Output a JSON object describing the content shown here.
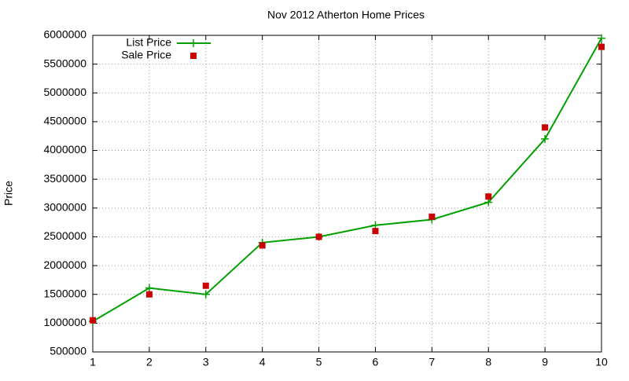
{
  "chart_data": {
    "type": "line",
    "title": "Nov 2012 Atherton Home Prices",
    "y_label": "Price",
    "x": [
      1,
      2,
      3,
      4,
      5,
      6,
      7,
      8,
      9,
      10
    ],
    "series": [
      {
        "name": "List Price",
        "color": "#00a000",
        "mode": "lines+markers",
        "marker": "plus",
        "values": [
          1030000,
          1610000,
          1500000,
          2400000,
          2500000,
          2700000,
          2800000,
          3100000,
          4200000,
          5950000
        ]
      },
      {
        "name": "Sale Price",
        "color": "#cc0000",
        "mode": "markers",
        "marker": "square",
        "values": [
          1050000,
          1500000,
          1650000,
          2350000,
          2500000,
          2600000,
          2850000,
          3200000,
          4400000,
          5800000
        ]
      }
    ],
    "xlim": [
      1,
      10
    ],
    "xticks": [
      1,
      2,
      3,
      4,
      5,
      6,
      7,
      8,
      9,
      10
    ],
    "ylim": [
      500000,
      6000000
    ],
    "yticks": [
      500000,
      1000000,
      1500000,
      2000000,
      2500000,
      3000000,
      3500000,
      4000000,
      4500000,
      5000000,
      5500000,
      6000000
    ],
    "grid": true,
    "legend_position": "top-left"
  }
}
